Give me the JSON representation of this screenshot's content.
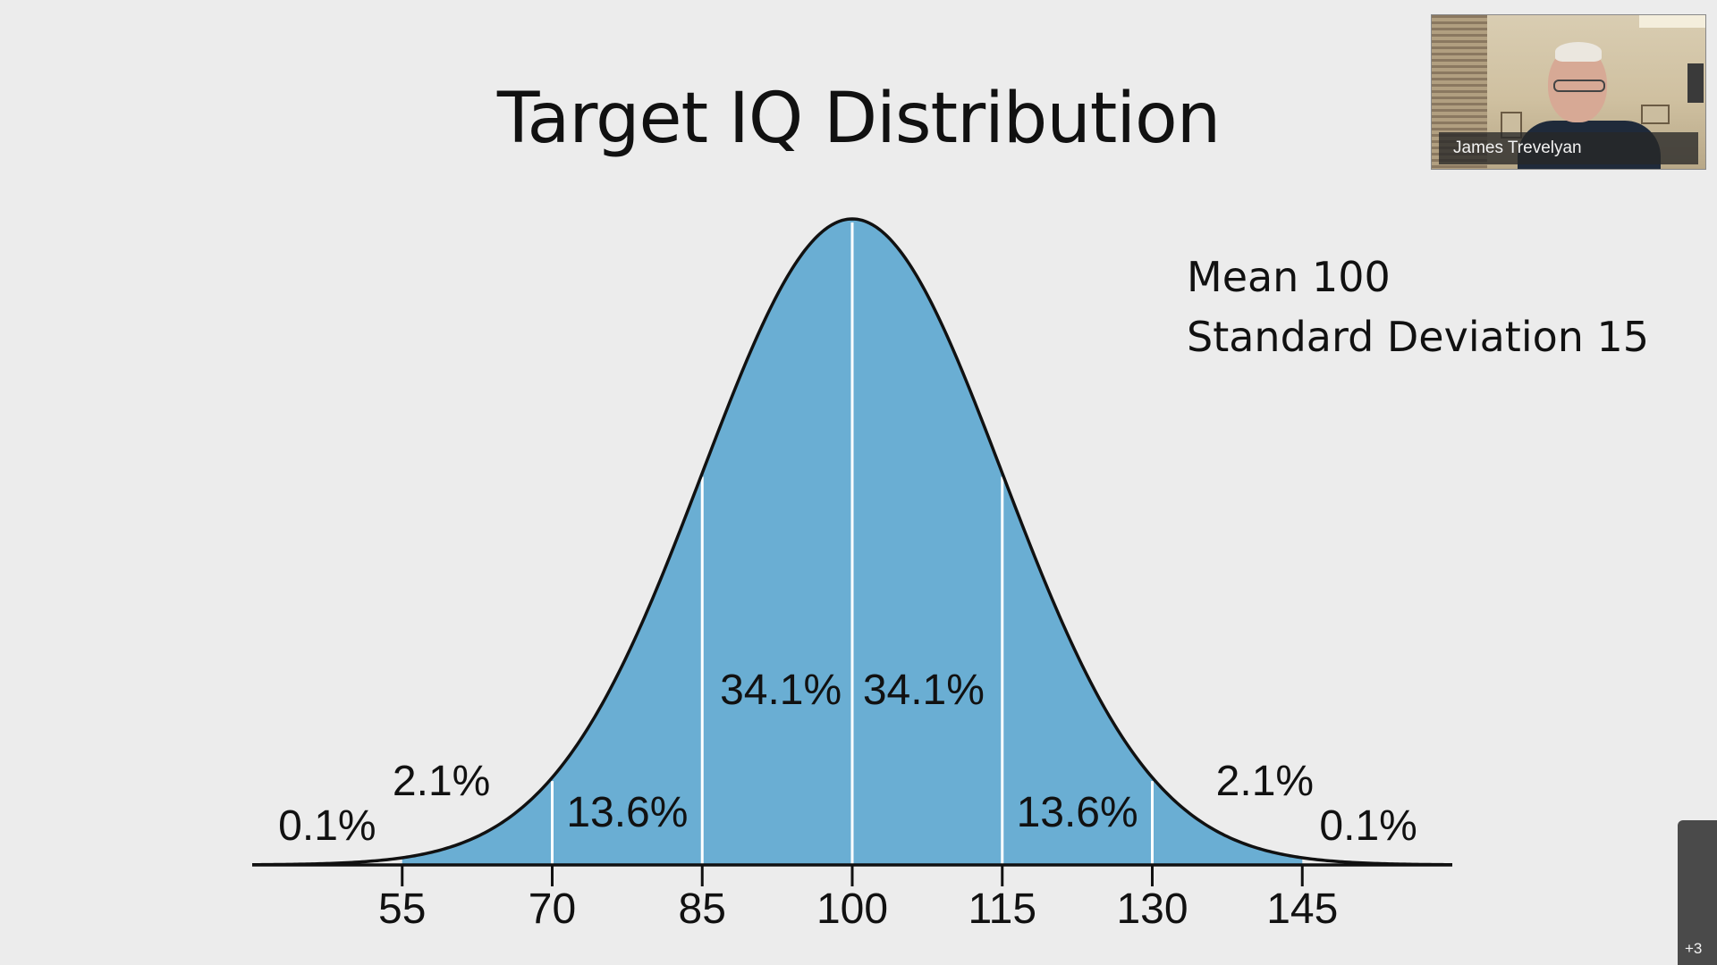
{
  "slide": {
    "title": "Target IQ Distribution",
    "annotation_mean": "Mean 100",
    "annotation_sd": "Standard Deviation 15"
  },
  "video": {
    "participant_name": "James Trevelyan",
    "more_participants": "+3"
  },
  "colors": {
    "fill": "#6aaed3",
    "curve": "#111111",
    "divider": "#ffffff",
    "background": "#ececec"
  },
  "chart_data": {
    "type": "area",
    "title": "Target IQ Distribution",
    "distribution": "normal",
    "mean": 100,
    "sd": 15,
    "xlim": [
      40,
      160
    ],
    "x_ticks": [
      55,
      70,
      85,
      100,
      115,
      130,
      145
    ],
    "x_tick_labels": [
      "55",
      "70",
      "85",
      "100",
      "115",
      "130",
      "145"
    ],
    "divider_lines": [
      70,
      85,
      100,
      115,
      130
    ],
    "filled_range": [
      55,
      145
    ],
    "grid": false,
    "segment_labels": [
      {
        "x": 47.5,
        "text": "0.1%"
      },
      {
        "x": 62.5,
        "text": "2.1%"
      },
      {
        "x": 77.5,
        "text": "13.6%"
      },
      {
        "x": 92.5,
        "text": "34.1%"
      },
      {
        "x": 107.5,
        "text": "34.1%"
      },
      {
        "x": 122.5,
        "text": "13.6%"
      },
      {
        "x": 137.5,
        "text": "2.1%"
      },
      {
        "x": 152.5,
        "text": "0.1%"
      }
    ]
  }
}
